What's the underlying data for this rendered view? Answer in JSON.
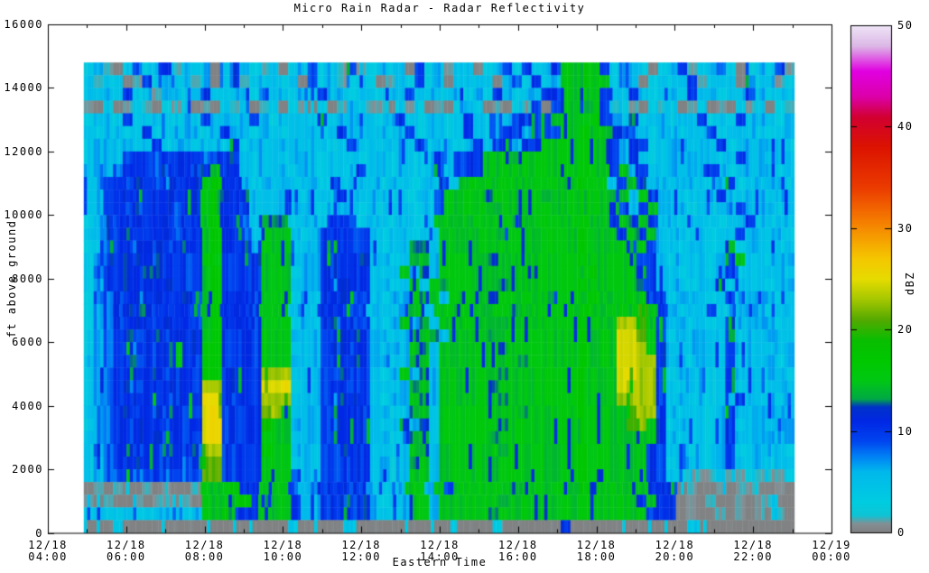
{
  "title": "Micro Rain Radar - Radar Reflectivity",
  "chart_data": {
    "type": "heatmap",
    "title": "Micro Rain Radar - Radar Reflectivity",
    "xlabel": "Eastern Time",
    "ylabel": "ft above ground",
    "zlabel": "dBZ",
    "x_axis": {
      "ticks": [
        {
          "date": "12/18",
          "time": "04:00"
        },
        {
          "date": "12/18",
          "time": "06:00"
        },
        {
          "date": "12/18",
          "time": "08:00"
        },
        {
          "date": "12/18",
          "time": "10:00"
        },
        {
          "date": "12/18",
          "time": "12:00"
        },
        {
          "date": "12/18",
          "time": "14:00"
        },
        {
          "date": "12/18",
          "time": "16:00"
        },
        {
          "date": "12/18",
          "time": "18:00"
        },
        {
          "date": "12/18",
          "time": "20:00"
        },
        {
          "date": "12/18",
          "time": "22:00"
        },
        {
          "date": "12/19",
          "time": "00:00"
        }
      ],
      "major_tick_hours": 2,
      "minor_tick_hours": 1,
      "span_hours": 20
    },
    "y_axis": {
      "min": 0,
      "max": 16000,
      "ticks": [
        {
          "label": "0",
          "value": 0
        },
        {
          "label": "2000",
          "value": 2000
        },
        {
          "label": "4000",
          "value": 4000
        },
        {
          "label": "6000",
          "value": 6000
        },
        {
          "label": "8000",
          "value": 8000
        },
        {
          "label": "10000",
          "value": 10000
        },
        {
          "label": "12000",
          "value": 12000
        },
        {
          "label": "14000",
          "value": 14000
        },
        {
          "label": "16000",
          "value": 16000
        }
      ]
    },
    "colorbar": {
      "label": "dBZ",
      "min": 0,
      "max": 50,
      "ticks": [
        {
          "label": "0",
          "value": 0
        },
        {
          "label": "10",
          "value": 10
        },
        {
          "label": "20",
          "value": 20
        },
        {
          "label": "30",
          "value": 30
        },
        {
          "label": "40",
          "value": 40
        },
        {
          "label": "50",
          "value": 50
        }
      ],
      "palette_stops": [
        [
          0,
          "#808080"
        ],
        [
          0.9,
          "#849095"
        ],
        [
          1.7,
          "#10c4d4"
        ],
        [
          3,
          "#00cde1"
        ],
        [
          6,
          "#00b9ec"
        ],
        [
          7.5,
          "#0082f5"
        ],
        [
          9,
          "#0046f0"
        ],
        [
          11,
          "#0028e6"
        ],
        [
          12.4,
          "#0032c8"
        ],
        [
          13.2,
          "#00aa46"
        ],
        [
          15,
          "#00c814"
        ],
        [
          17,
          "#00c800"
        ],
        [
          19,
          "#0abe00"
        ],
        [
          21,
          "#55aa00"
        ],
        [
          23,
          "#a5c800"
        ],
        [
          25,
          "#e6dc00"
        ],
        [
          27,
          "#f5c800"
        ],
        [
          29,
          "#f5a000"
        ],
        [
          31,
          "#f57800"
        ],
        [
          34,
          "#eb3c00"
        ],
        [
          38,
          "#dc1400"
        ],
        [
          41,
          "#d20032"
        ],
        [
          43,
          "#dc00aa"
        ],
        [
          45.5,
          "#e100e1"
        ],
        [
          48,
          "#dcb9e6"
        ],
        [
          50,
          "#f0e6f8"
        ]
      ]
    },
    "grid": {
      "units": "dBZ",
      "time_start": "12/18 04:55",
      "time_end": "12/18 23:03",
      "data_start_offset_hours": 0.9167,
      "data_end_offset_hours": 19.05,
      "alt_top_ft": 14800,
      "row_height_ft": 400,
      "value_key": {
        "g": 0,
        "1": 1.2,
        "2": 4,
        "3": 5.5,
        "4": 7,
        "5": 8.5,
        "6": 10,
        "7": 11.5,
        "8": 13.2,
        "9": 15,
        "a": 16.5,
        "b": 18,
        "c": 19.5,
        "d": 21,
        "e": 23,
        "f": 25
      },
      "rows_top_down": [
        "231g252361323g253213g235231612323g523123g2352623699a962532g23612352g23261",
        "3123g16232313g25132323g5231232g132523g2323g35262399a99253g232361233g52312",
        "32336231332363233253323263323323362323323263233669999633632332633233 63233",
        "1g2g131g212g1g212g13g21g2g13211g212g1g232g1g216g699896121g212g12g1g212g21",
        "2332632332326332363233326233332363233236323366669999a63362332336232633323",
        "3233236233332363323323332363233236233236323663666 99a996633233233623332233",
        "2333323623323326233333233236332333623323636636699 99a996366233323362333332",
        "2333566566665665323323332333233233236366699989999 99a996363233233323633233",
        "2335666576657966323332332332633233236366699999999 99a996936333233632333323",
        "2356676576669a6632333233262333233233629999999999 99a99369633 2333236233332",
        "2356766676669a7663233323326333323233699998999998 999a99693963 3233362333233",
        "2356676675669a6653233233233323233323699999899999 999a99963693 3323233633323",
        "2456676675669a66538882332666233233239999999989999 99a996969633233323363233",
        "3456766675669a66539993236666632332339999998999999 9a999696933323233633332",
        "2356677766769a66649992336666632338839999999999999 9a999969633233239233323",
        "245677676666a96666999333666673323893999998999999 99a999996632333236933233",
        "2566767766669a66669992336666632393839999999998999 99a999996332332 36233332",
        "2466766676669a66669993336776633239398999998999999 9a999996633323362333233",
        "2556676766769a66669992336676632339893999989999989 99a999996623332 36333323",
        "2456767666669a66669993336666633238939999999989999 99a99999c96 3233623333233",
        "2456676676669a66669992336766632393839999998999999 9a999eec963323236333323",
        "2456766766679a66669993336677633238983999989999999 9a999ffd962333236233332",
        "245667667667aa66669992336776632339839999998999999 9a999ffe963233236333233",
        "345676667666aa66669993336667633238939999999989999 9a999ffee63323236233323",
        "245667676666aa6666eee33366766323938399999989999999a999ffee62333236333332",
        "245676667666ee6666fff2336766633238939999989999999 9a999feee63233236233233",
        "245667667667ff6666eee33367776323398399999989999999a999eeee63323233633323",
        "345676676666ff6666de92336666633238939999999989999 9a9999dee63233236333332",
        "245667667667ff6666b9933367666323938399999989999999a9999de962333236233233",
        "345667676666ff66669992336666633238939999989999999 9a999999963233236333323",
        "245676667667ee6666a9933366766323398399999989999999a999999663323236233332",
        "235667666656dd66669992336666633238939999989999999 9a999999662333236333233",
        "235565565555dd666699953366666332399399999899999999a999999663211121121112",
        "g1g1gg1g1gg1999a669995336666633239939699999989999 99a99999966 6g1gg1g11gg1g",
        "1g1gg1g11g1g999aa66996336676632339939999998999999 9a999996966g1g1gg1g11gg",
        "23223223322399a66699963366666332399399999899999999a999999666g1gg1g1g1g1g",
        "ggg2ggggggggggggggggg2ggggg2gggggggggggggg2gggggg6gggggggggggg2gggggggggg"
      ]
    }
  }
}
